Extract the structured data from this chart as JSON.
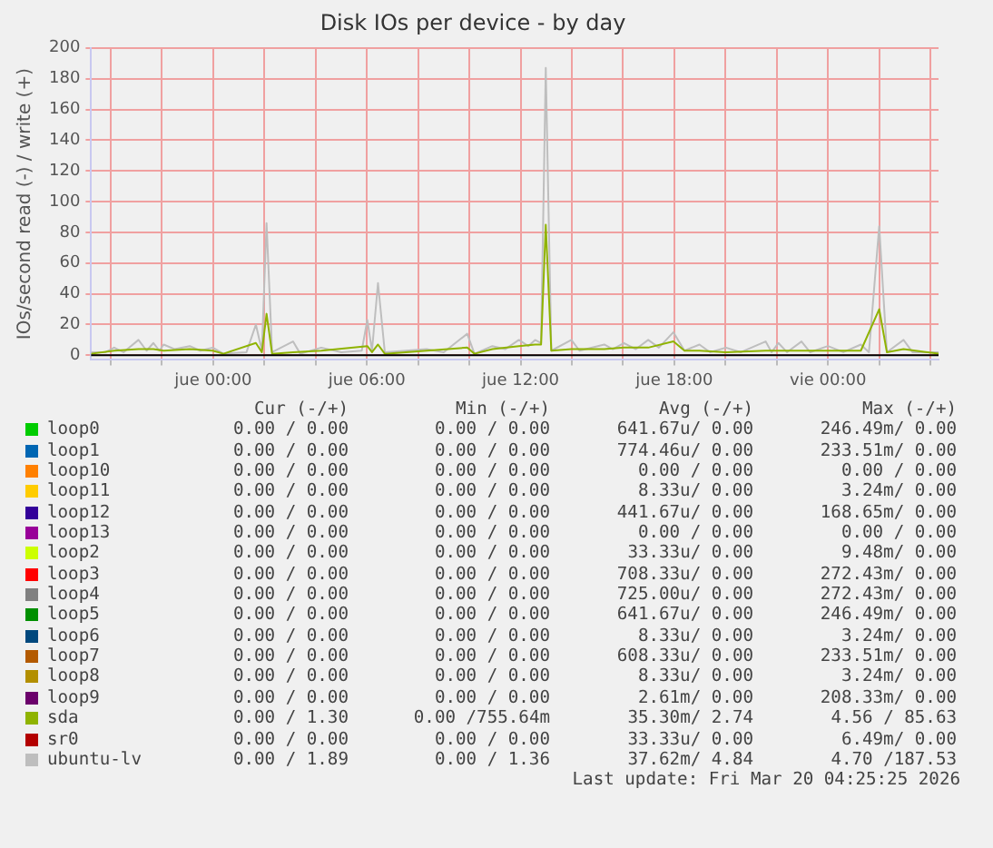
{
  "chart_data": {
    "type": "line",
    "title": "Disk IOs per device - by day",
    "ylabel": "IOs/second read (-) / write (+)",
    "xlim": [
      "2026-03-18T19:14",
      "2026-03-20T04:19"
    ],
    "xticks": [
      {
        "value": "2026-03-18T20:00",
        "label": null
      },
      {
        "value": "2026-03-18T22:00",
        "label": null
      },
      {
        "value": "2026-03-19T00:00",
        "label": "jue 00:00"
      },
      {
        "value": "2026-03-19T02:00",
        "label": null
      },
      {
        "value": "2026-03-19T04:00",
        "label": null
      },
      {
        "value": "2026-03-19T06:00",
        "label": "jue 06:00"
      },
      {
        "value": "2026-03-19T08:00",
        "label": null
      },
      {
        "value": "2026-03-19T10:00",
        "label": null
      },
      {
        "value": "2026-03-19T12:00",
        "label": "jue 12:00"
      },
      {
        "value": "2026-03-19T14:00",
        "label": null
      },
      {
        "value": "2026-03-19T16:00",
        "label": null
      },
      {
        "value": "2026-03-19T18:00",
        "label": "jue 18:00"
      },
      {
        "value": "2026-03-19T20:00",
        "label": null
      },
      {
        "value": "2026-03-19T22:00",
        "label": null
      },
      {
        "value": "2026-03-20T00:00",
        "label": "vie 00:00"
      },
      {
        "value": "2026-03-20T02:00",
        "label": null
      },
      {
        "value": "2026-03-20T04:00",
        "label": null
      }
    ],
    "ylim": [
      -3,
      200
    ],
    "yticks": [
      0,
      20,
      40,
      60,
      80,
      100,
      120,
      140,
      160,
      180,
      200
    ],
    "grid": true,
    "legend": "bottom",
    "marker": "none",
    "line_style": "solid",
    "ref_lines": [
      {
        "axis": "y",
        "value": 0,
        "color": "#000000"
      }
    ],
    "series": [
      {
        "name": "loop0",
        "color": "#00cc00",
        "values": [
          null
        ]
      },
      {
        "name": "loop1",
        "color": "#0066b3",
        "values": [
          null
        ]
      },
      {
        "name": "loop10",
        "color": "#ff8000",
        "values": [
          null
        ]
      },
      {
        "name": "loop11",
        "color": "#ffcc00",
        "values": [
          null
        ]
      },
      {
        "name": "loop12",
        "color": "#330099",
        "values": [
          null
        ]
      },
      {
        "name": "loop13",
        "color": "#990099",
        "values": [
          null
        ]
      },
      {
        "name": "loop2",
        "color": "#ccff00",
        "values": [
          null
        ]
      },
      {
        "name": "loop3",
        "color": "#ff0000",
        "values": [
          null
        ]
      },
      {
        "name": "loop4",
        "color": "#808080",
        "values": [
          null
        ]
      },
      {
        "name": "loop5",
        "color": "#008f00",
        "values": [
          null
        ]
      },
      {
        "name": "loop6",
        "color": "#00487d",
        "values": [
          null
        ]
      },
      {
        "name": "loop7",
        "color": "#b35a00",
        "values": [
          null
        ]
      },
      {
        "name": "loop8",
        "color": "#b38f00",
        "values": [
          null
        ]
      },
      {
        "name": "loop9",
        "color": "#6b006b",
        "values": [
          null
        ]
      },
      {
        "name": "sda",
        "color": "#8fb300",
        "x": [
          "2026-03-18T19:14",
          "2026-03-18T20:08",
          "2026-03-18T21:05",
          "2026-03-18T21:40",
          "2026-03-18T22:04",
          "2026-03-18T23:05",
          "2026-03-18T23:59",
          "2026-03-19T00:24",
          "2026-03-19T01:40",
          "2026-03-19T01:54",
          "2026-03-19T02:05",
          "2026-03-19T02:18",
          "2026-03-19T03:07",
          "2026-03-19T04:13",
          "2026-03-19T06:01",
          "2026-03-19T06:12",
          "2026-03-19T06:26",
          "2026-03-19T06:42",
          "2026-03-19T08:20",
          "2026-03-19T09:55",
          "2026-03-19T10:12",
          "2026-03-19T10:54",
          "2026-03-19T11:56",
          "2026-03-19T12:34",
          "2026-03-19T12:48",
          "2026-03-19T12:59",
          "2026-03-19T13:12",
          "2026-03-19T13:59",
          "2026-03-19T15:16",
          "2026-03-19T16:02",
          "2026-03-19T16:59",
          "2026-03-19T17:58",
          "2026-03-19T18:24",
          "2026-03-19T18:59",
          "2026-03-19T20:01",
          "2026-03-19T21:34",
          "2026-03-19T22:58",
          "2026-03-20T00:00",
          "2026-03-20T01:17",
          "2026-03-20T02:00",
          "2026-03-20T02:18",
          "2026-03-20T02:57",
          "2026-03-20T04:19"
        ],
        "values": [
          1,
          3,
          4,
          4,
          3,
          4,
          3,
          1,
          8,
          2,
          27,
          1,
          2,
          3,
          6,
          2,
          7,
          1,
          3,
          5,
          1,
          4,
          6,
          7,
          7,
          85,
          3,
          4,
          4,
          5,
          5,
          9,
          3,
          3,
          2,
          3,
          3,
          3,
          3,
          30,
          2,
          4,
          1
        ]
      },
      {
        "name": "sr0",
        "color": "#b30000",
        "values": [
          null
        ]
      },
      {
        "name": "ubuntu-lv",
        "color": "#bebebe",
        "x": [
          "2026-03-18T19:14",
          "2026-03-18T19:48",
          "2026-03-18T20:08",
          "2026-03-18T20:30",
          "2026-03-18T21:05",
          "2026-03-18T21:24",
          "2026-03-18T21:40",
          "2026-03-18T21:54",
          "2026-03-18T22:04",
          "2026-03-18T22:30",
          "2026-03-18T23:05",
          "2026-03-18T23:30",
          "2026-03-18T23:59",
          "2026-03-19T00:24",
          "2026-03-19T01:18",
          "2026-03-19T01:40",
          "2026-03-19T01:54",
          "2026-03-19T02:05",
          "2026-03-19T02:18",
          "2026-03-19T03:07",
          "2026-03-19T03:24",
          "2026-03-19T04:13",
          "2026-03-19T05:00",
          "2026-03-19T05:48",
          "2026-03-19T06:01",
          "2026-03-19T06:12",
          "2026-03-19T06:26",
          "2026-03-19T06:42",
          "2026-03-19T08:20",
          "2026-03-19T09:00",
          "2026-03-19T09:55",
          "2026-03-19T10:12",
          "2026-03-19T10:54",
          "2026-03-19T11:24",
          "2026-03-19T11:56",
          "2026-03-19T12:18",
          "2026-03-19T12:34",
          "2026-03-19T12:48",
          "2026-03-19T12:59",
          "2026-03-19T13:12",
          "2026-03-19T13:59",
          "2026-03-19T14:18",
          "2026-03-19T15:16",
          "2026-03-19T15:36",
          "2026-03-19T16:02",
          "2026-03-19T16:30",
          "2026-03-19T16:59",
          "2026-03-19T17:24",
          "2026-03-19T17:58",
          "2026-03-19T18:24",
          "2026-03-19T18:59",
          "2026-03-19T19:24",
          "2026-03-19T20:01",
          "2026-03-19T20:36",
          "2026-03-19T21:34",
          "2026-03-19T21:48",
          "2026-03-19T22:04",
          "2026-03-19T22:24",
          "2026-03-19T22:58",
          "2026-03-19T23:18",
          "2026-03-20T00:00",
          "2026-03-20T00:36",
          "2026-03-20T01:17",
          "2026-03-20T01:36",
          "2026-03-20T02:00",
          "2026-03-20T02:18",
          "2026-03-20T02:57",
          "2026-03-20T03:18",
          "2026-03-20T04:14",
          "2026-03-20T04:19"
        ],
        "values": [
          2,
          2,
          5,
          2,
          10,
          3,
          8,
          3,
          7,
          4,
          6,
          3,
          5,
          1,
          2,
          20,
          3,
          86,
          2,
          9,
          1,
          5,
          2,
          3,
          23,
          3,
          47,
          2,
          4,
          2,
          14,
          1,
          6,
          4,
          10,
          6,
          10,
          8,
          187,
          3,
          10,
          3,
          7,
          4,
          8,
          4,
          10,
          5,
          15,
          3,
          7,
          2,
          5,
          2,
          9,
          2,
          8,
          2,
          9,
          2,
          6,
          2,
          7,
          2,
          84,
          2,
          10,
          2,
          2,
          2
        ]
      }
    ],
    "annotations": [
      "Cur (-/+)",
      "Min (-/+)",
      "Avg (-/+)",
      "Max (-/+)",
      "0.00 / 0.00",
      "0.00 / 0.00",
      "641.67u/ 0.00",
      "246.49m/ 0.00",
      "0.00 / 0.00",
      "0.00 / 0.00",
      "774.46u/ 0.00",
      "233.51m/ 0.00",
      "0.00 / 0.00",
      "0.00 / 0.00",
      "0.00 / 0.00",
      "0.00 / 0.00",
      "0.00 / 0.00",
      "0.00 / 0.00",
      "8.33u/ 0.00",
      "3.24m/ 0.00",
      "0.00 / 0.00",
      "0.00 / 0.00",
      "441.67u/ 0.00",
      "168.65m/ 0.00",
      "0.00 / 0.00",
      "0.00 / 0.00",
      "0.00 / 0.00",
      "0.00 / 0.00",
      "0.00 / 0.00",
      "0.00 / 0.00",
      "33.33u/ 0.00",
      "9.48m/ 0.00",
      "0.00 / 0.00",
      "0.00 / 0.00",
      "708.33u/ 0.00",
      "272.43m/ 0.00",
      "0.00 / 0.00",
      "0.00 / 0.00",
      "725.00u/ 0.00",
      "272.43m/ 0.00",
      "0.00 / 0.00",
      "0.00 / 0.00",
      "641.67u/ 0.00",
      "246.49m/ 0.00",
      "0.00 / 0.00",
      "0.00 / 0.00",
      "8.33u/ 0.00",
      "3.24m/ 0.00",
      "0.00 / 0.00",
      "0.00 / 0.00",
      "608.33u/ 0.00",
      "233.51m/ 0.00",
      "0.00 / 0.00",
      "0.00 / 0.00",
      "8.33u/ 0.00",
      "3.24m/ 0.00",
      "0.00 / 0.00",
      "0.00 / 0.00",
      "2.61m/ 0.00",
      "208.33m/ 0.00",
      "0.00 / 1.30",
      "0.00 /755.64m",
      "35.30m/ 2.74",
      "4.56 / 85.63",
      "0.00 / 0.00",
      "0.00 / 0.00",
      "33.33u/ 0.00",
      "6.49m/ 0.00",
      "0.00 / 1.89",
      "0.00 / 1.36",
      "37.62m/ 4.84",
      "4.70 /187.53",
      "Last update: Fri Mar 20 04:25:25 2026"
    ]
  }
}
